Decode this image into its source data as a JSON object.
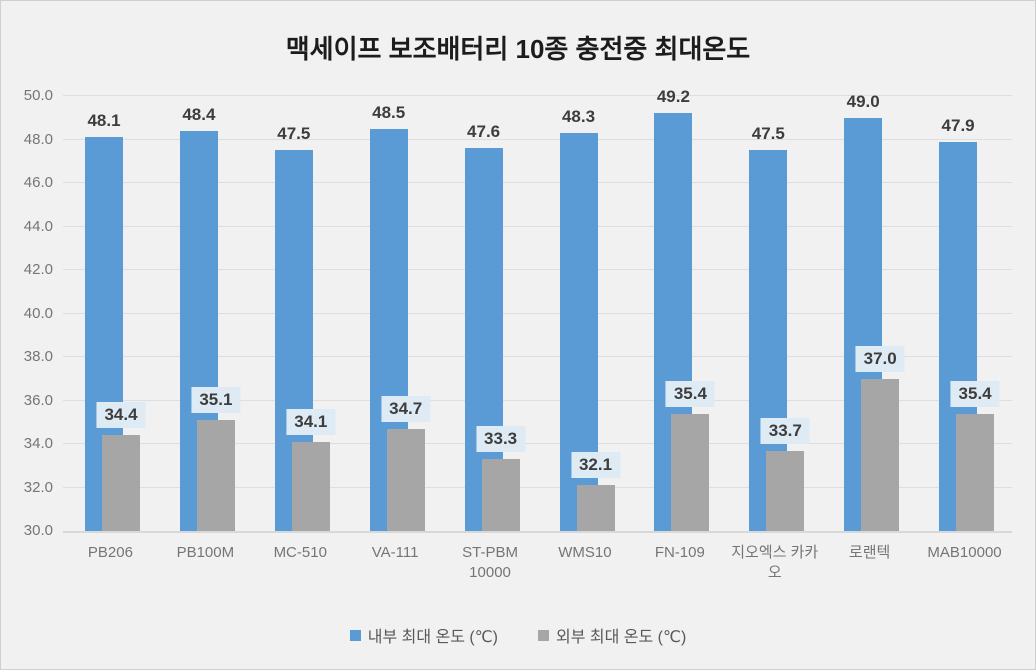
{
  "chart_data": {
    "type": "bar",
    "title": "맥세이프 보조배터리 10종 충전중 최대온도",
    "categories": [
      "PB206",
      "PB100M",
      "MC-510",
      "VA-111",
      "ST-PBM 10000",
      "WMS10",
      "FN-109",
      "지오엑스 카카오",
      "로랜텍",
      "MAB10000"
    ],
    "series": [
      {
        "name": "내부 최대 온도 (℃)",
        "color": "#5B9BD5",
        "values": [
          48.1,
          48.4,
          47.5,
          48.5,
          47.6,
          48.3,
          49.2,
          47.5,
          49.0,
          47.9
        ],
        "label_style": "plain"
      },
      {
        "name": "외부 최대 온도 (℃)",
        "color": "#A6A6A6",
        "values": [
          34.4,
          35.1,
          34.1,
          34.7,
          33.3,
          32.1,
          35.4,
          33.7,
          37.0,
          35.4
        ],
        "label_style": "boxed"
      }
    ],
    "ylim": [
      30.0,
      50.0
    ],
    "ytick_step": 2.0,
    "ytick_labels": [
      "30.0",
      "32.0",
      "34.0",
      "36.0",
      "38.0",
      "40.0",
      "42.0",
      "44.0",
      "46.0",
      "48.0",
      "50.0"
    ],
    "grid": true,
    "legend_position": "bottom",
    "data_label_decimals": 1
  },
  "colors": {
    "background": "#F1F1F1",
    "gridline": "#DEDEDE",
    "axis_line": "#D8D8D8",
    "axis_text": "#757575",
    "data_label_text": "#3D3D3D",
    "title_text": "#1C1C1C",
    "label_box_fill": "#DEEBF5"
  }
}
